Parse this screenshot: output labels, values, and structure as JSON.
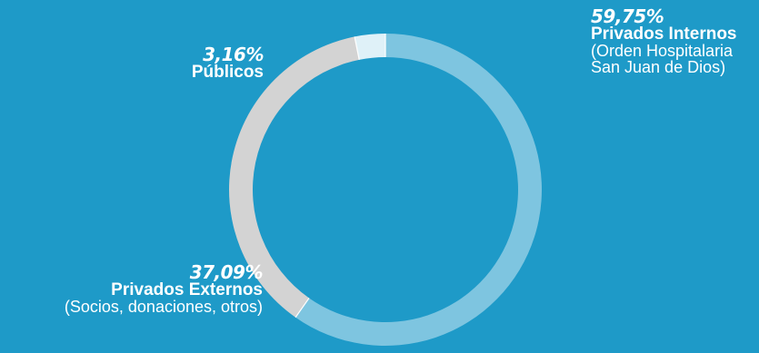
{
  "chart_data": {
    "type": "pie",
    "variant": "donut",
    "slices": [
      {
        "percent_label": "59,75%",
        "name": "Privados Internos",
        "detail_lines": [
          "(Orden Hospitalaria",
          "San Juan de Dios)"
        ],
        "value": 59.75,
        "color": "#7ec5e0"
      },
      {
        "percent_label": "37,09%",
        "name": "Privados Externos",
        "detail_lines": [
          "(Socios, donaciones, otros)"
        ],
        "value": 37.09,
        "color": "#d3d3d3"
      },
      {
        "percent_label": "3,16%",
        "name": "Públicos",
        "detail_lines": [],
        "value": 3.16,
        "color": "#dff1f8"
      }
    ]
  },
  "colors": {
    "background": "#1e9ac8",
    "text": "#ffffff",
    "slice_gap": "#ffffff"
  }
}
